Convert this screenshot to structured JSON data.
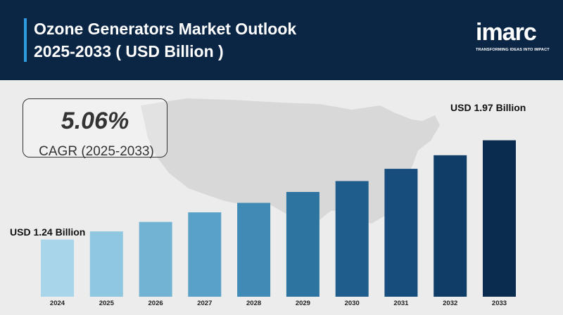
{
  "header": {
    "title_line1": "Ozone Generators Market Outlook",
    "title_line2": "2025-2033 ( USD Billion )"
  },
  "logo": {
    "word": "imarc",
    "tagline": "TRANSFORMING IDEAS INTO IMPACT"
  },
  "cagr": {
    "value": "5.06%",
    "label": "CAGR (2025-2033)"
  },
  "annotations": {
    "start_label": "USD 1.24 Billion",
    "end_label": "USD 1.97 Billion"
  },
  "colors": {
    "header_bg": "#0b2545",
    "accent": "#2f9be0",
    "bars": [
      "#a8d5ea",
      "#8fc6e0",
      "#72b3d4",
      "#5aa1c7",
      "#3f8bb5",
      "#2d74a1",
      "#1f5d8d",
      "#164d7d",
      "#0f3d68",
      "#0a2c4e"
    ]
  },
  "chart_data": {
    "type": "bar",
    "categories": [
      "2024",
      "2025",
      "2026",
      "2027",
      "2028",
      "2029",
      "2030",
      "2031",
      "2032",
      "2033"
    ],
    "values": [
      1.24,
      1.3,
      1.37,
      1.44,
      1.51,
      1.59,
      1.67,
      1.76,
      1.86,
      1.97
    ],
    "ylim": [
      0.82,
      2.05
    ],
    "grid": false,
    "legend": "none"
  }
}
